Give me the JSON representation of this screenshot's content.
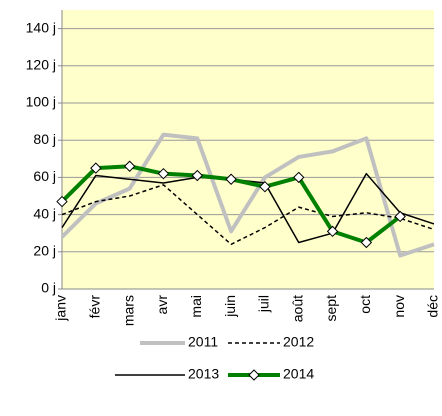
{
  "chart_data": {
    "type": "line",
    "categories": [
      "janv",
      "févr",
      "mars",
      "avr",
      "mai",
      "juin",
      "juil",
      "août",
      "sept",
      "oct",
      "nov",
      "déc"
    ],
    "series": [
      {
        "name": "2011",
        "color": "#c0c0c0",
        "linestyle": "solid",
        "linewidth": 4,
        "marker": "none",
        "values": [
          28,
          46,
          54,
          83,
          81,
          31,
          60,
          71,
          74,
          81,
          18,
          24
        ]
      },
      {
        "name": "2012",
        "color": "#000000",
        "linestyle": "dashed",
        "linewidth": 1.5,
        "marker": "none",
        "values": [
          40,
          47,
          50,
          56,
          40,
          24,
          33,
          44,
          39,
          41,
          38,
          32
        ]
      },
      {
        "name": "2013",
        "color": "#000000",
        "linestyle": "solid",
        "linewidth": 1.5,
        "marker": "none",
        "values": [
          33,
          61,
          59,
          57,
          60,
          59,
          57,
          25,
          30,
          62,
          41,
          35
        ]
      },
      {
        "name": "2014",
        "color": "#008000",
        "linestyle": "solid",
        "linewidth": 4,
        "marker": "diamond",
        "values": [
          47,
          65,
          66,
          62,
          61,
          59,
          55,
          60,
          31,
          25,
          39,
          null
        ]
      }
    ],
    "ylim": [
      0,
      150
    ],
    "yticks": [
      {
        "value": 0,
        "label": "0 j"
      },
      {
        "value": 20,
        "label": "20 j"
      },
      {
        "value": 40,
        "label": "40 j"
      },
      {
        "value": 60,
        "label": "60 j"
      },
      {
        "value": 80,
        "label": "80 j"
      },
      {
        "value": 100,
        "label": "100 j"
      },
      {
        "value": 120,
        "label": "120 j"
      },
      {
        "value": 140,
        "label": "140 j"
      }
    ],
    "grid": true
  }
}
